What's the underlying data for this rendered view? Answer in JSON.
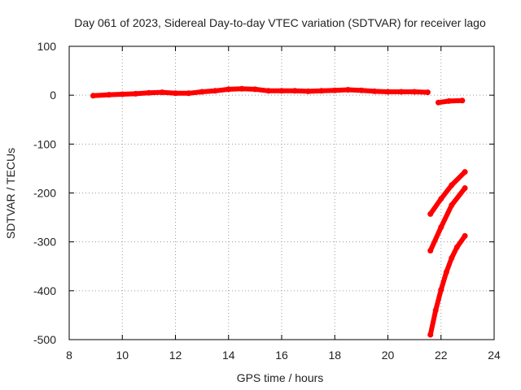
{
  "chart_data": {
    "type": "scatter",
    "title": "Day 061 of 2023, Sidereal Day-to-day VTEC variation (SDTVAR) for receiver lago",
    "xlabel": "GPS time / hours",
    "ylabel": "SDTVAR / TECUs",
    "xlim": [
      8,
      24
    ],
    "ylim": [
      -500,
      100
    ],
    "xticks": [
      8,
      10,
      12,
      14,
      16,
      18,
      20,
      22,
      24
    ],
    "yticks": [
      100,
      0,
      -100,
      -200,
      -300,
      -400,
      -500
    ],
    "xtick_labels": [
      "8",
      "10",
      "12",
      "14",
      "16",
      "18",
      "20",
      "22",
      "24"
    ],
    "ytick_labels": [
      "100",
      "0",
      "-100",
      "-200",
      "-300",
      "-400",
      "-500"
    ],
    "grid": true,
    "color": "#ff0000",
    "series": [
      {
        "name": "main",
        "x": [
          8.9,
          9.5,
          10.0,
          10.5,
          11.0,
          11.5,
          12.0,
          12.5,
          13.0,
          13.5,
          14.0,
          14.5,
          15.0,
          15.5,
          16.0,
          16.5,
          17.0,
          17.5,
          18.0,
          18.5,
          19.0,
          19.5,
          20.0,
          20.5,
          21.0,
          21.5
        ],
        "y": [
          -1,
          1,
          2,
          3,
          5,
          6,
          4,
          4,
          7,
          9,
          12,
          13,
          12,
          9,
          9,
          9,
          8,
          9,
          10,
          11,
          10,
          8,
          7,
          7,
          7,
          6
        ]
      },
      {
        "name": "segment-2",
        "x": [
          21.9,
          22.3,
          22.8
        ],
        "y": [
          -15,
          -12,
          -11
        ]
      },
      {
        "name": "segment-3",
        "x": [
          21.6,
          22.0,
          22.4,
          22.9
        ],
        "y": [
          -243,
          -212,
          -184,
          -157
        ]
      },
      {
        "name": "segment-4",
        "x": [
          21.6,
          22.0,
          22.4,
          22.9
        ],
        "y": [
          -318,
          -270,
          -225,
          -190
        ]
      },
      {
        "name": "segment-5",
        "x": [
          21.6,
          21.8,
          22.0,
          22.2,
          22.4,
          22.6,
          22.9
        ],
        "y": [
          -490,
          -440,
          -398,
          -362,
          -333,
          -311,
          -288
        ]
      }
    ]
  }
}
